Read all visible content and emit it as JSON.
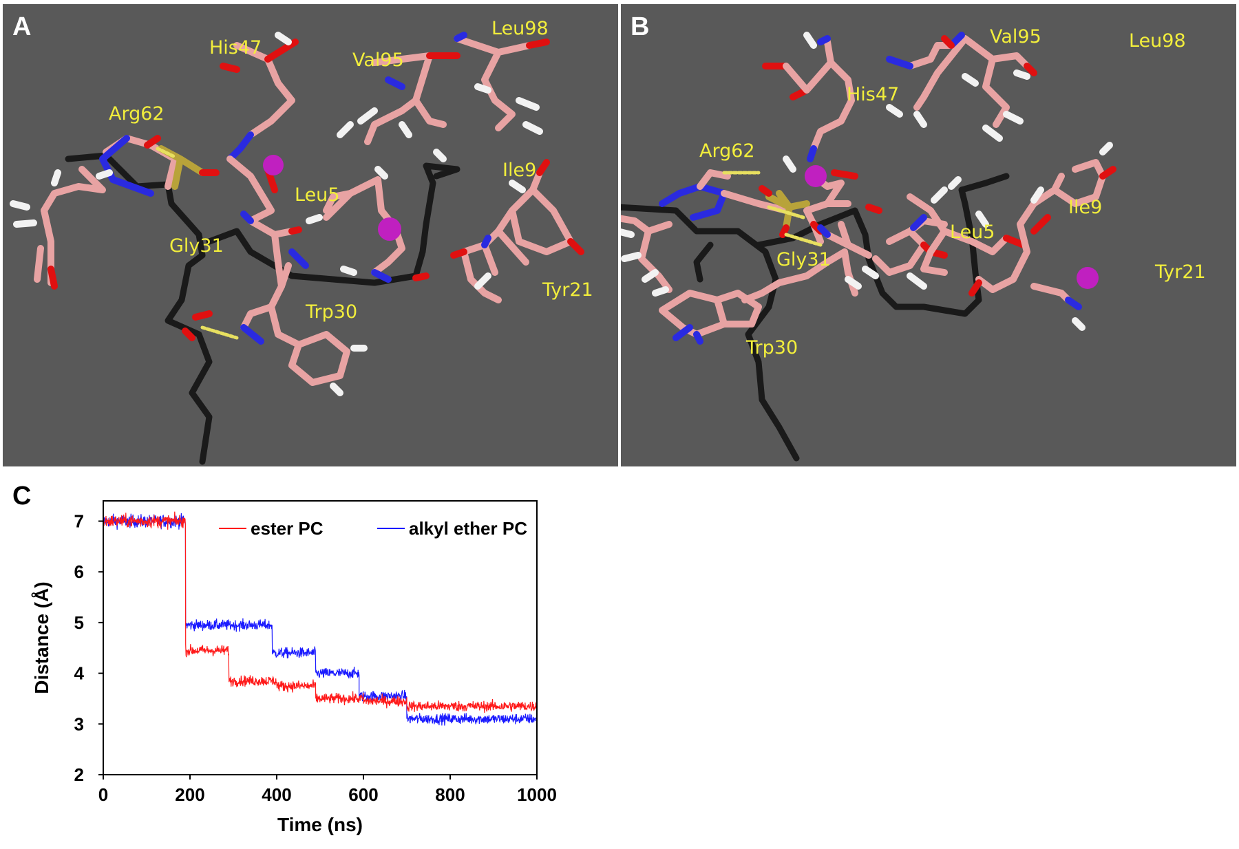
{
  "figure": {
    "panel_a": {
      "letter": "A",
      "labels": [
        "His47",
        "Val95",
        "Leu98",
        "Arg62",
        "Ile9",
        "Leu5",
        "Gly31",
        "Tyr21",
        "Trp30"
      ]
    },
    "panel_b": {
      "letter": "B",
      "labels": [
        "Val95",
        "Leu98",
        "His47",
        "Arg62",
        "Ile9",
        "Leu5",
        "Tyr21",
        "Gly31",
        "Trp30"
      ]
    },
    "panel_c": {
      "letter": "C"
    },
    "colors": {
      "background": "#595959",
      "carbon": "#e8a3a3",
      "nitrogen": "#2a2ae0",
      "oxygen": "#e01010",
      "hydrogen": "#f2f2f2",
      "lipid": "#1a1a1a",
      "ion": "#c020c0",
      "phosphorus": "#b8a33a",
      "label": "#f2ee3c"
    }
  },
  "chart_data": {
    "type": "line",
    "xlabel": "Time (ns)",
    "ylabel": "Distance (Å)",
    "xlim": [
      0,
      1000
    ],
    "ylim": [
      2,
      7.4
    ],
    "xticks": [
      0,
      200,
      400,
      600,
      800,
      1000
    ],
    "yticks": [
      2,
      3,
      4,
      5,
      6,
      7
    ],
    "legend_position": "top-right",
    "series": [
      {
        "name": "ester PC",
        "color": "#ff1a1a",
        "segments": [
          {
            "x": [
              0,
              190
            ],
            "y": 7.0
          },
          {
            "x": [
              190,
              290
            ],
            "y": 4.45
          },
          {
            "x": [
              290,
              400
            ],
            "y": 3.85
          },
          {
            "x": [
              400,
              490
            ],
            "y": 3.75
          },
          {
            "x": [
              490,
              600
            ],
            "y": 3.5
          },
          {
            "x": [
              600,
              700
            ],
            "y": 3.45
          },
          {
            "x": [
              700,
              1000
            ],
            "y": 3.35
          }
        ]
      },
      {
        "name": "alkyl ether PC",
        "color": "#1a1aff",
        "segments": [
          {
            "x": [
              0,
              190
            ],
            "y": 7.0
          },
          {
            "x": [
              190,
              390
            ],
            "y": 4.95
          },
          {
            "x": [
              390,
              490
            ],
            "y": 4.4
          },
          {
            "x": [
              490,
              590
            ],
            "y": 4.0
          },
          {
            "x": [
              590,
              700
            ],
            "y": 3.55
          },
          {
            "x": [
              700,
              1000
            ],
            "y": 3.1
          }
        ]
      }
    ]
  }
}
